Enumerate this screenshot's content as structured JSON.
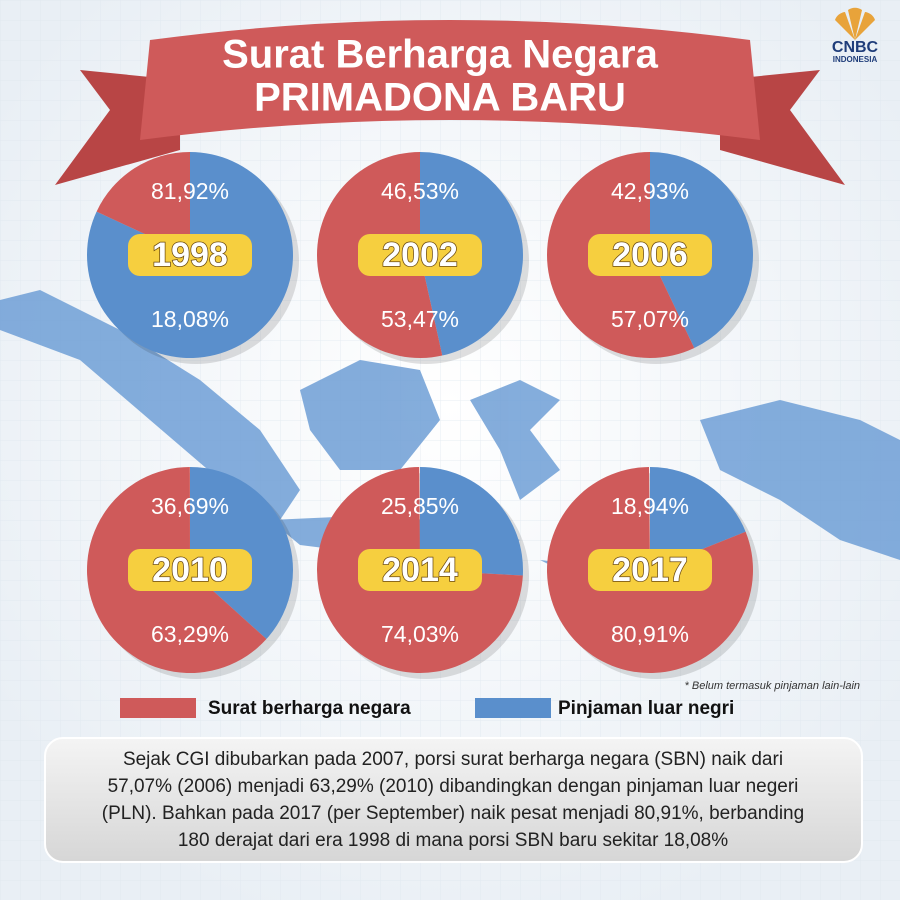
{
  "header": {
    "title": "Surat Berharga Negara",
    "subtitle": "PRIMADONA BARU"
  },
  "logo": {
    "name": "CNBC",
    "region": "INDONESIA"
  },
  "legend": [
    {
      "name": "Surat berharga negara",
      "color": "#cf5a5a"
    },
    {
      "name": "Pinjaman luar negri",
      "color": "#5a8fcc"
    }
  ],
  "chart_data": [
    {
      "type": "pie",
      "title": "1998",
      "values": [
        18.08,
        81.92
      ],
      "value_labels": [
        "18,08%",
        "81,92%"
      ]
    },
    {
      "type": "pie",
      "title": "2002",
      "values": [
        53.47,
        46.53
      ],
      "value_labels": [
        "53,47%",
        "46,53%"
      ]
    },
    {
      "type": "pie",
      "title": "2006",
      "values": [
        57.07,
        42.93
      ],
      "value_labels": [
        "57,07%",
        "42,93%"
      ]
    },
    {
      "type": "pie",
      "title": "2010",
      "values": [
        63.29,
        36.69
      ],
      "value_labels": [
        "63,29%",
        "36,69%"
      ]
    },
    {
      "type": "pie",
      "title": "2014",
      "values": [
        74.03,
        25.85
      ],
      "value_labels": [
        "74,03%",
        "25,85%"
      ]
    },
    {
      "type": "pie",
      "title": "2017",
      "values": [
        80.91,
        18.94
      ],
      "value_labels": [
        "80,91%",
        "18,94%"
      ]
    }
  ],
  "footnote": "* Belum termasuk pinjaman lain-lain",
  "description": [
    "Sejak CGI dibubarkan pada 2007, porsi surat berharga negara (SBN) naik dari",
    "57,07% (2006) menjadi 63,29% (2010) dibandingkan dengan pinjaman luar negeri",
    "(PLN). Bahkan pada 2017 (per September) naik pesat menjadi 80,91%, berbanding",
    "180 derajat dari era 1998 di mana porsi SBN baru sekitar 18,08%"
  ]
}
